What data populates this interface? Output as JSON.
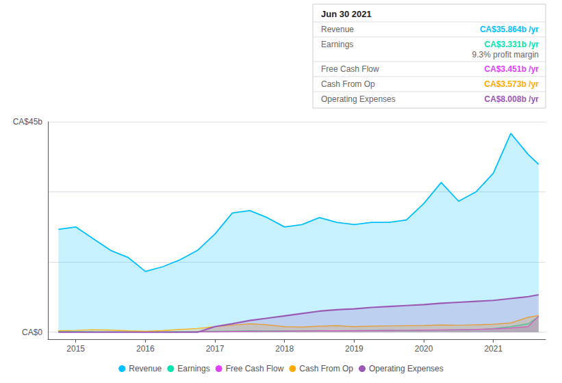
{
  "chart_data": {
    "type": "area",
    "x": [
      2014.75,
      2015.0,
      2015.25,
      2015.5,
      2015.75,
      2016.0,
      2016.25,
      2016.5,
      2016.75,
      2017.0,
      2017.25,
      2017.5,
      2017.75,
      2018.0,
      2018.25,
      2018.5,
      2018.75,
      2019.0,
      2019.25,
      2019.5,
      2019.75,
      2020.0,
      2020.25,
      2020.5,
      2020.75,
      2021.0,
      2021.25,
      2021.5,
      2021.65
    ],
    "series": [
      {
        "name": "Revenue",
        "color": "#00bfff",
        "values": [
          22.0,
          22.5,
          20.0,
          17.5,
          16.0,
          13.0,
          14.0,
          15.5,
          17.5,
          21.0,
          25.5,
          26.0,
          24.5,
          22.5,
          23.0,
          24.5,
          23.5,
          23.0,
          23.5,
          23.5,
          24.0,
          27.5,
          32.0,
          28.0,
          30.0,
          34.0,
          42.5,
          38.0,
          35.9
        ]
      },
      {
        "name": "Earnings",
        "color": "#00e5b0",
        "values": [
          0.15,
          0.18,
          0.12,
          0.1,
          0.08,
          0.08,
          0.1,
          0.12,
          0.15,
          0.2,
          0.25,
          0.3,
          0.28,
          0.3,
          0.32,
          0.35,
          0.33,
          0.35,
          0.38,
          0.38,
          0.4,
          0.42,
          0.45,
          0.5,
          0.55,
          0.8,
          1.2,
          1.8,
          3.33
        ]
      },
      {
        "name": "Free Cash Flow",
        "color": "#e040fb",
        "values": [
          0.05,
          0.05,
          0.05,
          0.05,
          0.05,
          0.05,
          0.05,
          0.05,
          0.08,
          0.1,
          0.15,
          0.2,
          0.22,
          0.25,
          0.28,
          0.3,
          0.3,
          0.32,
          0.35,
          0.38,
          0.4,
          0.45,
          0.5,
          0.55,
          0.6,
          0.7,
          0.9,
          1.2,
          3.45
        ]
      },
      {
        "name": "Cash From Op",
        "color": "#ffaa00",
        "values": [
          0.3,
          0.4,
          0.55,
          0.45,
          0.3,
          0.2,
          0.35,
          0.6,
          0.8,
          1.2,
          1.5,
          1.8,
          1.6,
          1.2,
          1.1,
          1.3,
          1.4,
          1.2,
          1.3,
          1.35,
          1.4,
          1.45,
          1.55,
          1.5,
          1.6,
          1.7,
          2.0,
          3.2,
          3.57
        ]
      },
      {
        "name": "Operating Expenses",
        "color": "#9b59b6",
        "values": [
          0.0,
          0.0,
          0.0,
          0.0,
          0.0,
          0.0,
          0.0,
          0.0,
          0.0,
          1.2,
          1.8,
          2.5,
          3.0,
          3.5,
          4.0,
          4.5,
          4.8,
          5.0,
          5.3,
          5.5,
          5.7,
          5.9,
          6.2,
          6.4,
          6.6,
          6.8,
          7.2,
          7.6,
          8.0
        ]
      }
    ],
    "xlim": [
      2014.6,
      2021.75
    ],
    "xticks": [
      2015,
      2016,
      2017,
      2018,
      2019,
      2020,
      2021
    ],
    "ylim": [
      -1.5,
      45
    ],
    "yticks": [
      0,
      15,
      30,
      45
    ],
    "grid": true,
    "legend": "bottom",
    "tick_labels": "x",
    "annotations": {
      "value_axis": [
        "CA$45b",
        "CA$0"
      ],
      "panel": {
        "title": "Jun 30 2021",
        "rows": [
          {
            "label": "Revenue",
            "value": "CA$35.864b /yr"
          },
          {
            "label": "Earnings",
            "value": "CA$3.331b /yr",
            "note": "9.3% profit margin"
          },
          {
            "label": "Free Cash Flow",
            "value": "CA$3.451b /yr"
          },
          {
            "label": "Cash From Op",
            "value": "CA$3.573b /yr"
          },
          {
            "label": "Operating Expenses",
            "value": "CA$8.008b /yr"
          }
        ]
      }
    }
  }
}
